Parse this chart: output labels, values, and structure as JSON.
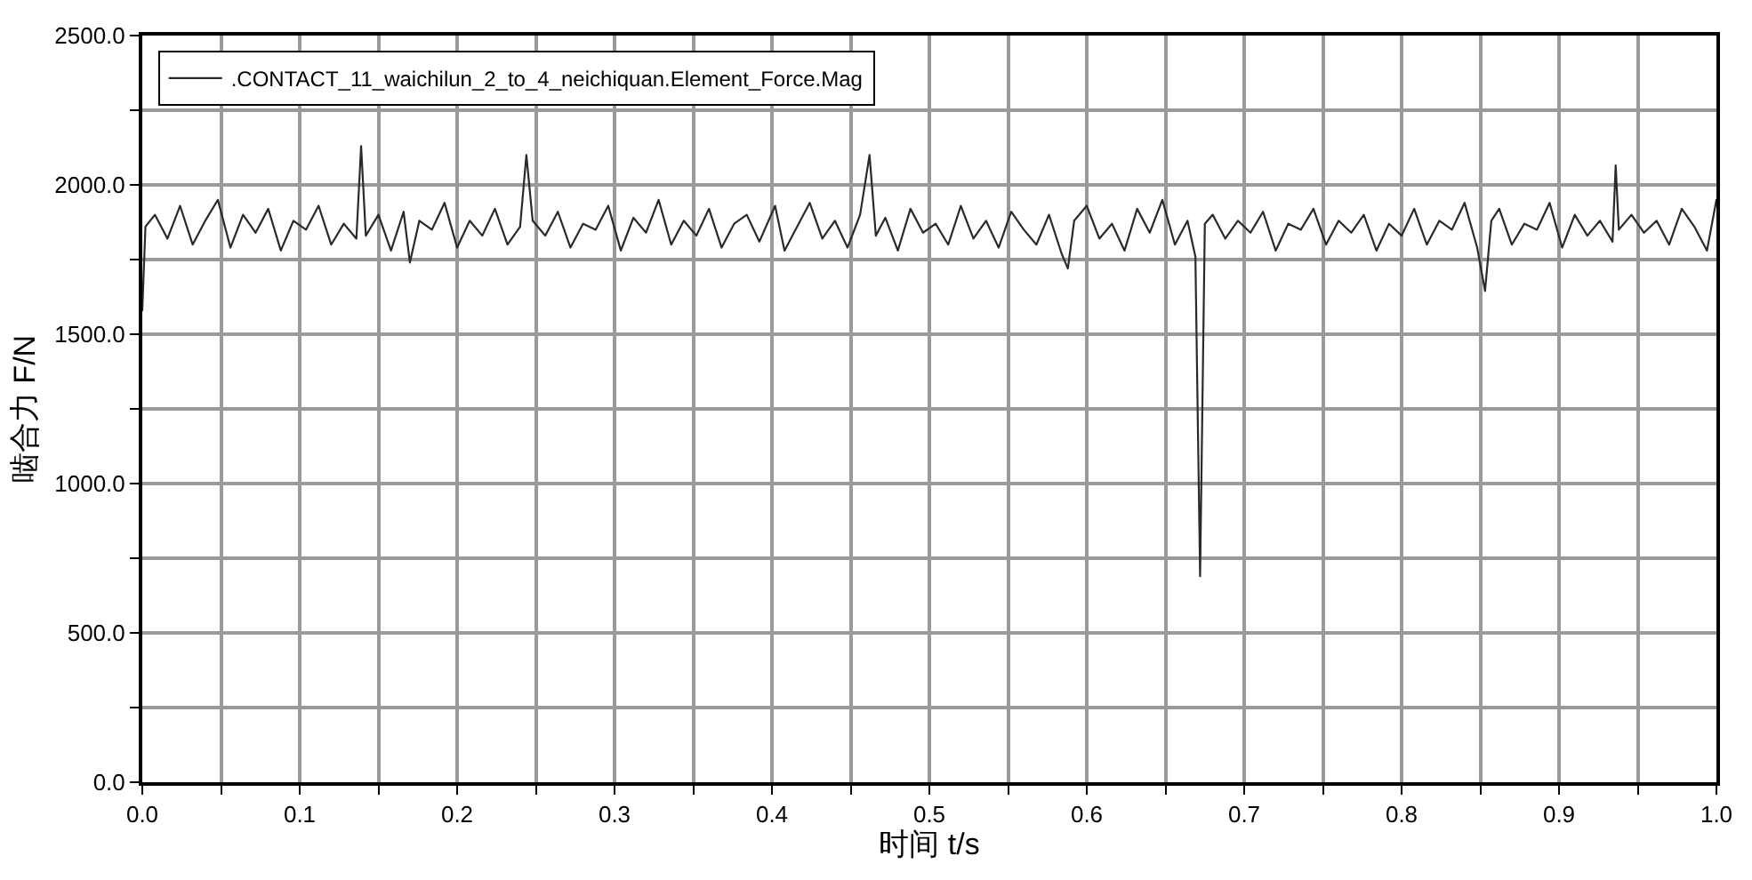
{
  "chart_data": {
    "type": "line",
    "xlabel": "时间 t/s",
    "ylabel": "啮合力 F/N",
    "xlim": [
      0,
      1
    ],
    "ylim": [
      0,
      2500
    ],
    "xticks": [
      {
        "value": 0,
        "label": "0.0"
      },
      {
        "value": 0.1,
        "label": "0.1"
      },
      {
        "value": 0.2,
        "label": "0.2"
      },
      {
        "value": 0.3,
        "label": "0.3"
      },
      {
        "value": 0.4,
        "label": "0.4"
      },
      {
        "value": 0.5,
        "label": "0.5"
      },
      {
        "value": 0.6,
        "label": "0.6"
      },
      {
        "value": 0.7,
        "label": "0.7"
      },
      {
        "value": 0.8,
        "label": "0.8"
      },
      {
        "value": 0.9,
        "label": "0.9"
      },
      {
        "value": 1,
        "label": "1.0"
      },
      {
        "value": 0.05,
        "label": null
      },
      {
        "value": 0.15,
        "label": null
      },
      {
        "value": 0.25,
        "label": null
      },
      {
        "value": 0.35,
        "label": null
      },
      {
        "value": 0.45,
        "label": null
      },
      {
        "value": 0.55,
        "label": null
      },
      {
        "value": 0.65,
        "label": null
      },
      {
        "value": 0.75,
        "label": null
      },
      {
        "value": 0.85,
        "label": null
      },
      {
        "value": 0.95,
        "label": null
      }
    ],
    "yticks": [
      {
        "value": 0,
        "label": "0.0"
      },
      {
        "value": 500,
        "label": "500.0"
      },
      {
        "value": 1000,
        "label": "1000.0"
      },
      {
        "value": 1500,
        "label": "1500.0"
      },
      {
        "value": 2000,
        "label": "2000.0"
      },
      {
        "value": 2500,
        "label": "2500.0"
      },
      {
        "value": 250,
        "label": null
      },
      {
        "value": 750,
        "label": null
      },
      {
        "value": 1250,
        "label": null
      },
      {
        "value": 1750,
        "label": null
      },
      {
        "value": 2250,
        "label": null
      }
    ],
    "grid": true,
    "legend": "top left",
    "line_style": "solid",
    "series": [
      {
        "name": ".CONTACT_11_waichilun_2_to_4_neichiquan.Element_Force.Mag",
        "color": "#2a2a2a",
        "x": [
          0,
          0.002,
          0.008,
          0.016,
          0.024,
          0.032,
          0.04,
          0.048,
          0.056,
          0.064,
          0.072,
          0.08,
          0.088,
          0.096,
          0.104,
          0.112,
          0.12,
          0.128,
          0.136,
          0.139,
          0.142,
          0.15,
          0.158,
          0.166,
          0.17,
          0.176,
          0.184,
          0.192,
          0.2,
          0.208,
          0.216,
          0.224,
          0.232,
          0.24,
          0.244,
          0.248,
          0.256,
          0.264,
          0.272,
          0.28,
          0.288,
          0.296,
          0.304,
          0.312,
          0.32,
          0.328,
          0.336,
          0.344,
          0.352,
          0.36,
          0.368,
          0.376,
          0.384,
          0.392,
          0.402,
          0.408,
          0.416,
          0.424,
          0.432,
          0.44,
          0.448,
          0.456,
          0.462,
          0.466,
          0.472,
          0.48,
          0.488,
          0.496,
          0.504,
          0.512,
          0.52,
          0.528,
          0.536,
          0.544,
          0.552,
          0.56,
          0.568,
          0.576,
          0.584,
          0.588,
          0.592,
          0.6,
          0.608,
          0.616,
          0.624,
          0.632,
          0.64,
          0.648,
          0.656,
          0.664,
          0.669,
          0.672,
          0.675,
          0.68,
          0.688,
          0.696,
          0.704,
          0.712,
          0.72,
          0.728,
          0.736,
          0.744,
          0.752,
          0.76,
          0.768,
          0.776,
          0.784,
          0.792,
          0.8,
          0.808,
          0.816,
          0.824,
          0.832,
          0.84,
          0.848,
          0.853,
          0.857,
          0.862,
          0.87,
          0.878,
          0.886,
          0.894,
          0.902,
          0.91,
          0.918,
          0.926,
          0.934,
          0.936,
          0.938,
          0.946,
          0.954,
          0.962,
          0.97,
          0.978,
          0.986,
          0.994,
          1.0
        ],
        "values": [
          1580,
          1860,
          1900,
          1820,
          1930,
          1800,
          1880,
          1950,
          1790,
          1900,
          1840,
          1920,
          1780,
          1880,
          1850,
          1930,
          1800,
          1870,
          1820,
          2130,
          1830,
          1900,
          1780,
          1910,
          1740,
          1880,
          1850,
          1940,
          1790,
          1880,
          1830,
          1920,
          1800,
          1860,
          2100,
          1880,
          1830,
          1910,
          1790,
          1870,
          1850,
          1930,
          1780,
          1890,
          1840,
          1950,
          1800,
          1880,
          1830,
          1920,
          1790,
          1870,
          1900,
          1810,
          1930,
          1780,
          1860,
          1940,
          1820,
          1880,
          1790,
          1900,
          2100,
          1830,
          1890,
          1780,
          1920,
          1840,
          1870,
          1800,
          1930,
          1820,
          1880,
          1790,
          1910,
          1850,
          1800,
          1900,
          1770,
          1720,
          1880,
          1930,
          1820,
          1870,
          1780,
          1920,
          1840,
          1950,
          1800,
          1880,
          1760,
          690,
          1870,
          1900,
          1820,
          1880,
          1840,
          1910,
          1780,
          1870,
          1850,
          1920,
          1800,
          1880,
          1840,
          1900,
          1780,
          1870,
          1830,
          1920,
          1800,
          1880,
          1850,
          1940,
          1790,
          1645,
          1880,
          1920,
          1800,
          1870,
          1850,
          1940,
          1790,
          1900,
          1830,
          1880,
          1810,
          2065,
          1850,
          1900,
          1840,
          1880,
          1800,
          1920,
          1860,
          1780,
          1950
        ]
      }
    ]
  }
}
